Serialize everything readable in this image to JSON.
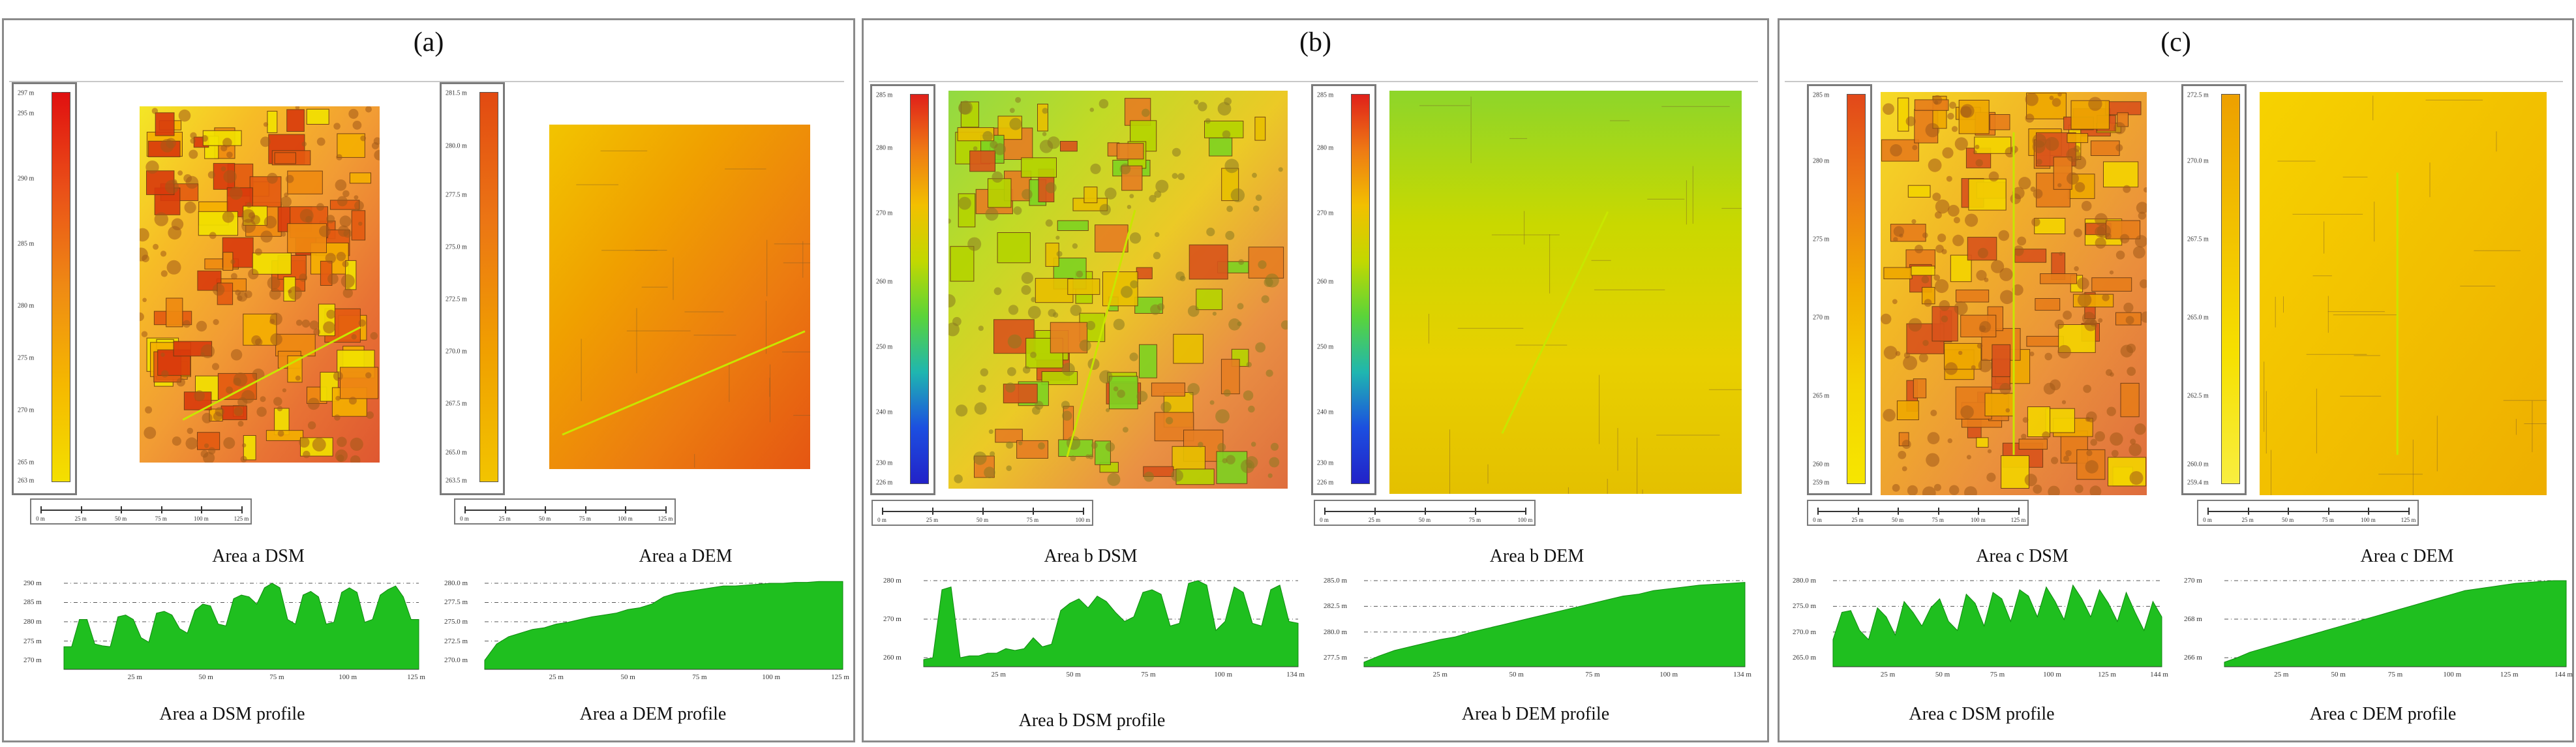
{
  "panels": [
    {
      "title": "(a)",
      "dsm": {
        "legend": [
          "297 m",
          "295 m",
          "290 m",
          "285 m",
          "280 m",
          "275 m",
          "270 m",
          "265 m",
          "263 m"
        ],
        "caption": "Area a DSM",
        "colors": [
          "#f2e200",
          "#f5b000",
          "#ef8a10",
          "#e45a10",
          "#d93a0c"
        ],
        "base_color": "#e78a2b",
        "scale": [
          "0 m",
          "25 m",
          "50 m",
          "75 m",
          "100 m",
          "125 m"
        ]
      },
      "dem": {
        "legend": [
          "281.5 m",
          "280.0 m",
          "277.5 m",
          "275.0 m",
          "272.5 m",
          "270.0 m",
          "267.5 m",
          "265.0 m",
          "263.5 m"
        ],
        "caption": "Area a DEM",
        "colors": [
          "#f2c400",
          "#f0a000",
          "#ec7c10",
          "#e55612"
        ],
        "base_color": "#ec8a22",
        "scale": [
          "0 m",
          "25 m",
          "50 m",
          "75 m",
          "100 m",
          "125 m"
        ]
      },
      "dsm_profile": {
        "caption": "Area a DSM profile",
        "y_ticks": [
          "290 m",
          "285 m",
          "280 m",
          "275 m",
          "270 m"
        ],
        "x_ticks": [
          "25 m",
          "50 m",
          "75 m",
          "100 m",
          "125 m"
        ],
        "values": [
          0.25,
          0.25,
          0.55,
          0.55,
          0.28,
          0.26,
          0.25,
          0.58,
          0.6,
          0.55,
          0.35,
          0.3,
          0.62,
          0.64,
          0.6,
          0.45,
          0.4,
          0.65,
          0.72,
          0.7,
          0.5,
          0.48,
          0.78,
          0.82,
          0.8,
          0.72,
          0.9,
          0.95,
          0.9,
          0.55,
          0.5,
          0.82,
          0.86,
          0.8,
          0.5,
          0.52,
          0.85,
          0.9,
          0.85,
          0.52,
          0.55,
          0.82,
          0.88,
          0.92,
          0.8,
          0.55,
          0.55
        ]
      },
      "dem_profile": {
        "caption": "Area a DEM profile",
        "y_ticks": [
          "280.0 m",
          "277.5 m",
          "275.0 m",
          "272.5 m",
          "270.0 m"
        ],
        "x_ticks": [
          "25 m",
          "50 m",
          "75 m",
          "100 m",
          "125 m"
        ],
        "values": [
          0.1,
          0.28,
          0.36,
          0.4,
          0.44,
          0.46,
          0.5,
          0.52,
          0.55,
          0.58,
          0.6,
          0.62,
          0.66,
          0.68,
          0.72,
          0.8,
          0.84,
          0.86,
          0.88,
          0.9,
          0.92,
          0.92,
          0.93,
          0.94,
          0.95,
          0.95,
          0.96,
          0.96,
          0.97,
          0.97,
          0.97
        ]
      }
    },
    {
      "title": "(b)",
      "dsm": {
        "legend": [
          "285 m",
          "280 m",
          "270 m",
          "260 m",
          "250 m",
          "240 m",
          "230 m",
          "226 m"
        ],
        "caption": "Area b DSM",
        "colors": [
          "#7ed321",
          "#b5d400",
          "#e8c000",
          "#e67e22",
          "#d9541b"
        ],
        "base_color": "#b8c818",
        "scale": [
          "0 m",
          "25 m",
          "50 m",
          "75 m",
          "100 m"
        ]
      },
      "dem": {
        "legend": [
          "285 m",
          "280 m",
          "270 m",
          "260 m",
          "250 m",
          "240 m",
          "230 m",
          "226 m"
        ],
        "caption": "Area b DEM",
        "colors": [
          "#8dd62a",
          "#c9d800",
          "#e8d000",
          "#e4c000"
        ],
        "base_color": "#d8cc10",
        "scale": [
          "0 m",
          "25 m",
          "50 m",
          "75 m",
          "100 m"
        ]
      },
      "dsm_profile": {
        "caption": "Area b DSM profile",
        "y_ticks": [
          "280 m",
          "270 m",
          "260 m"
        ],
        "x_ticks": [
          "25 m",
          "50 m",
          "75 m",
          "100 m",
          "134 m"
        ],
        "values": [
          0.08,
          0.1,
          0.85,
          0.88,
          0.1,
          0.12,
          0.12,
          0.15,
          0.15,
          0.2,
          0.18,
          0.2,
          0.32,
          0.22,
          0.25,
          0.62,
          0.7,
          0.75,
          0.65,
          0.78,
          0.72,
          0.6,
          0.5,
          0.55,
          0.82,
          0.85,
          0.8,
          0.45,
          0.48,
          0.92,
          0.95,
          0.9,
          0.4,
          0.5,
          0.88,
          0.82,
          0.48,
          0.45,
          0.85,
          0.9,
          0.5,
          0.48
        ]
      },
      "dem_profile": {
        "caption": "Area b DEM profile",
        "y_ticks": [
          "285.0 m",
          "282.5 m",
          "280.0 m",
          "277.5 m"
        ],
        "x_ticks": [
          "25 m",
          "50 m",
          "75 m",
          "100 m",
          "134 m"
        ],
        "values": [
          0.05,
          0.12,
          0.18,
          0.22,
          0.26,
          0.3,
          0.33,
          0.38,
          0.42,
          0.46,
          0.5,
          0.54,
          0.58,
          0.62,
          0.66,
          0.7,
          0.74,
          0.78,
          0.8,
          0.84,
          0.86,
          0.88,
          0.9,
          0.91,
          0.92,
          0.93
        ]
      }
    },
    {
      "title": "(c)",
      "dsm": {
        "legend": [
          "285 m",
          "280 m",
          "275 m",
          "270 m",
          "265 m",
          "260 m",
          "259 m"
        ],
        "caption": "Area c DSM",
        "colors": [
          "#f4d400",
          "#efa800",
          "#e77d1a",
          "#d9531b"
        ],
        "base_color": "#e8b210",
        "scale": [
          "0 m",
          "25 m",
          "50 m",
          "75 m",
          "100 m",
          "125 m"
        ]
      },
      "dem": {
        "legend": [
          "272.5 m",
          "270.0 m",
          "267.5 m",
          "265.0 m",
          "262.5 m",
          "260.0 m",
          "259.4 m"
        ],
        "caption": "Area c DEM",
        "colors": [
          "#f6d200",
          "#f2c000",
          "#eeae00"
        ],
        "base_color": "#f2c412",
        "scale": [
          "0 m",
          "25 m",
          "50 m",
          "75 m",
          "100 m",
          "125 m"
        ]
      },
      "dsm_profile": {
        "caption": "Area c DSM profile",
        "y_ticks": [
          "280.0 m",
          "275.0 m",
          "270.0 m",
          "265.0 m"
        ],
        "x_ticks": [
          "25 m",
          "50 m",
          "75 m",
          "100 m",
          "125 m",
          "144 m"
        ],
        "values": [
          0.3,
          0.6,
          0.62,
          0.4,
          0.3,
          0.65,
          0.55,
          0.35,
          0.72,
          0.6,
          0.45,
          0.65,
          0.75,
          0.5,
          0.4,
          0.8,
          0.7,
          0.45,
          0.82,
          0.75,
          0.5,
          0.85,
          0.78,
          0.55,
          0.88,
          0.72,
          0.52,
          0.9,
          0.75,
          0.55,
          0.85,
          0.7,
          0.5,
          0.82,
          0.6,
          0.4,
          0.72,
          0.55
        ]
      },
      "dem_profile": {
        "caption": "Area c DEM profile",
        "y_ticks": [
          "270 m",
          "268 m",
          "266 m"
        ],
        "x_ticks": [
          "25 m",
          "50 m",
          "75 m",
          "100 m",
          "125 m",
          "144 m"
        ],
        "values": [
          0.05,
          0.1,
          0.16,
          0.2,
          0.24,
          0.28,
          0.32,
          0.36,
          0.4,
          0.44,
          0.48,
          0.52,
          0.56,
          0.6,
          0.64,
          0.68,
          0.72,
          0.76,
          0.8,
          0.84,
          0.86,
          0.88,
          0.9,
          0.92,
          0.93,
          0.94,
          0.95,
          0.95
        ]
      }
    }
  ]
}
